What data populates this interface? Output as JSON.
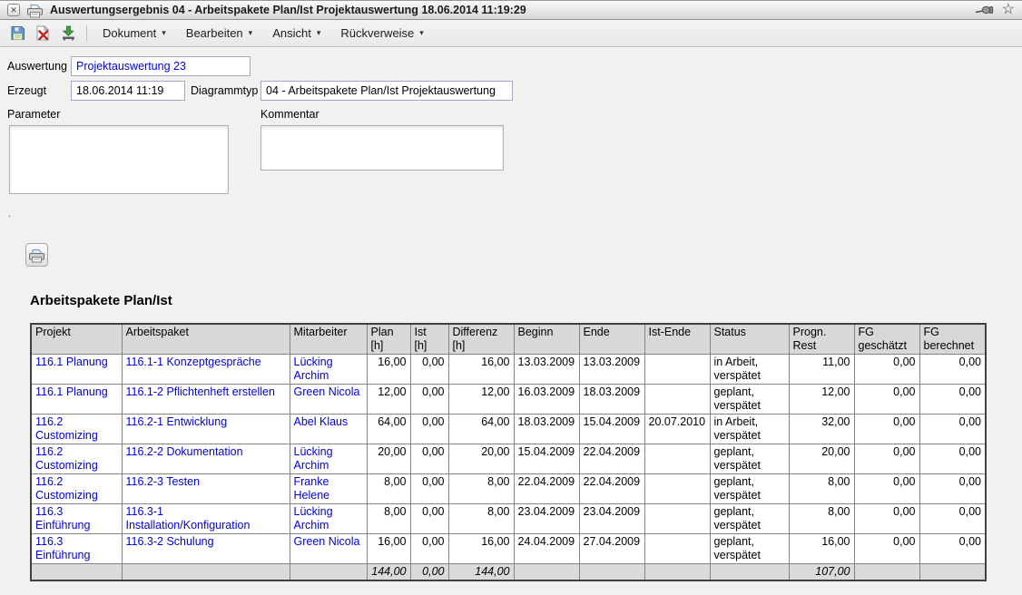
{
  "window": {
    "title": "Auswertungsergebnis 04 - Arbeitspakete Plan/Ist Projektauswertung 18.06.2014 11:19:29",
    "close_glyph": "✕",
    "star_glyph": "☆"
  },
  "toolbar": {
    "menus": [
      {
        "label": "Dokument",
        "caret": "▾"
      },
      {
        "label": "Bearbeiten",
        "caret": "▾"
      },
      {
        "label": "Ansicht",
        "caret": "▾"
      },
      {
        "label": "Rückverweise",
        "caret": "▾"
      }
    ]
  },
  "form": {
    "auswertung": {
      "label": "Auswertung",
      "value": "Projektauswertung 23"
    },
    "erzeugt": {
      "label": "Erzeugt",
      "value": "18.06.2014 11:19"
    },
    "diagrammtyp": {
      "label": "Diagrammtyp",
      "value": "04 - Arbeitspakete Plan/Ist Projektauswertung"
    },
    "parameter": {
      "label": "Parameter",
      "value": ""
    },
    "kommentar": {
      "label": "Kommentar",
      "value": ""
    },
    "stray_dot": "."
  },
  "report": {
    "heading": "Arbeitspakete Plan/Ist",
    "table": {
      "headers": [
        "Projekt",
        "Arbeitspaket",
        "Mitarbeiter",
        "Plan\n[h]",
        "Ist\n[h]",
        "Differenz\n[h]",
        "Beginn",
        "Ende",
        "Ist-Ende",
        "Status",
        "Progn.\nRest",
        "FG\ngeschätzt",
        "FG\nberechnet"
      ],
      "rows": [
        {
          "projekt": "116.1 Planung",
          "arbeitspaket": "116.1-1 Konzeptgespräche",
          "mitarbeiter": "Lücking Archim",
          "plan": "16,00",
          "ist": "0,00",
          "differenz": "16,00",
          "beginn": "13.03.2009",
          "ende": "13.03.2009",
          "ist_ende": "",
          "status": "in Arbeit, verspätet",
          "progn_rest": "11,00",
          "fg_geschaetzt": "0,00",
          "fg_berechnet": "0,00"
        },
        {
          "projekt": "116.1 Planung",
          "arbeitspaket": "116.1-2 Pflichtenheft erstellen",
          "mitarbeiter": "Green Nicola",
          "plan": "12,00",
          "ist": "0,00",
          "differenz": "12,00",
          "beginn": "16.03.2009",
          "ende": "18.03.2009",
          "ist_ende": "",
          "status": "geplant, verspätet",
          "progn_rest": "12,00",
          "fg_geschaetzt": "0,00",
          "fg_berechnet": "0,00"
        },
        {
          "projekt": "116.2 Customizing",
          "arbeitspaket": "116.2-1 Entwicklung",
          "mitarbeiter": "Abel Klaus",
          "plan": "64,00",
          "ist": "0,00",
          "differenz": "64,00",
          "beginn": "18.03.2009",
          "ende": "15.04.2009",
          "ist_ende": "20.07.2010",
          "status": "in Arbeit, verspätet",
          "progn_rest": "32,00",
          "fg_geschaetzt": "0,00",
          "fg_berechnet": "0,00"
        },
        {
          "projekt": "116.2 Customizing",
          "arbeitspaket": "116.2-2 Dokumentation",
          "mitarbeiter": "Lücking Archim",
          "plan": "20,00",
          "ist": "0,00",
          "differenz": "20,00",
          "beginn": "15.04.2009",
          "ende": "22.04.2009",
          "ist_ende": "",
          "status": "geplant, verspätet",
          "progn_rest": "20,00",
          "fg_geschaetzt": "0,00",
          "fg_berechnet": "0,00"
        },
        {
          "projekt": "116.2 Customizing",
          "arbeitspaket": "116.2-3 Testen",
          "mitarbeiter": "Franke Helene",
          "plan": "8,00",
          "ist": "0,00",
          "differenz": "8,00",
          "beginn": "22.04.2009",
          "ende": "22.04.2009",
          "ist_ende": "",
          "status": "geplant, verspätet",
          "progn_rest": "8,00",
          "fg_geschaetzt": "0,00",
          "fg_berechnet": "0,00"
        },
        {
          "projekt": "116.3 Einführung",
          "arbeitspaket": "116.3-1 Installation/Konfiguration",
          "mitarbeiter": "Lücking Archim",
          "plan": "8,00",
          "ist": "0,00",
          "differenz": "8,00",
          "beginn": "23.04.2009",
          "ende": "23.04.2009",
          "ist_ende": "",
          "status": "geplant, verspätet",
          "progn_rest": "8,00",
          "fg_geschaetzt": "0,00",
          "fg_berechnet": "0,00"
        },
        {
          "projekt": "116.3 Einführung",
          "arbeitspaket": "116.3-2 Schulung",
          "mitarbeiter": "Green Nicola",
          "plan": "16,00",
          "ist": "0,00",
          "differenz": "16,00",
          "beginn": "24.04.2009",
          "ende": "27.04.2009",
          "ist_ende": "",
          "status": "geplant, verspätet",
          "progn_rest": "16,00",
          "fg_geschaetzt": "0,00",
          "fg_berechnet": "0,00"
        }
      ],
      "totals": {
        "plan": "144,00",
        "ist": "0,00",
        "differenz": "144,00",
        "progn_rest": "107,00"
      }
    }
  },
  "colors": {
    "status_late_bg": "#f5814e",
    "link_blue": "#0000d8",
    "table_header_bg": "#d8d8d8",
    "totals_row_bg": "#dbdbdb"
  }
}
